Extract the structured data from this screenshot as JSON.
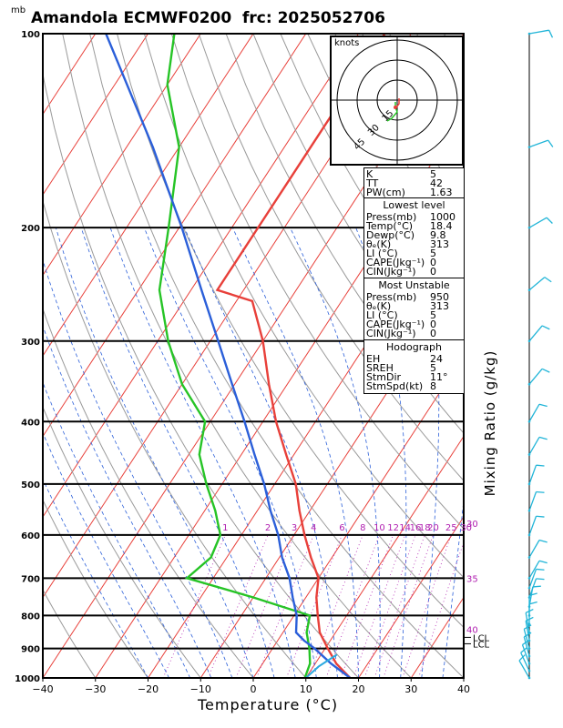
{
  "header": {
    "title": "Amandola ECMWF0200  frc: 2025052706",
    "unit_mb": "mb"
  },
  "chart_data": {
    "type": "line",
    "title": "Amandola ECMWF0200  frc: 2025052706",
    "xlabel": "Temperature (°C)",
    "ylabel": "Mixing Ratio (g/kg)",
    "xlim": [
      -40,
      40
    ],
    "ylim": [
      1000,
      100
    ],
    "y_scale": "log",
    "x_ticks": [
      -40,
      -30,
      -20,
      -10,
      0,
      10,
      20,
      30,
      40
    ],
    "x_tick_labels": [
      "−40",
      "−30",
      "−20",
      "−10",
      "0",
      "10",
      "20",
      "30",
      "40"
    ],
    "pressure_ticks": [
      1000,
      900,
      800,
      700,
      600,
      500,
      400,
      300,
      200,
      100
    ],
    "pressure_tick_labels": [
      "1000",
      "900",
      "800",
      "700",
      "600",
      "500",
      "400",
      "300",
      "200",
      "100"
    ],
    "mixing_ratio_labels": [
      "1",
      "2",
      "3",
      "4",
      "6",
      "8",
      "10",
      "12",
      "14",
      "16",
      "18",
      "20",
      "25",
      "30"
    ],
    "isotherm_skew_labels": [
      {
        "text": "30",
        "p": 575
      },
      {
        "text": "35",
        "p": 700
      },
      {
        "text": "40",
        "p": 840
      }
    ],
    "lcl_labels": [
      "LCL",
      "LCL"
    ],
    "series": [
      {
        "name": "Temperature",
        "color": "#e8403a",
        "points": [
          [
            18.4,
            1000
          ],
          [
            14,
            950
          ],
          [
            10.5,
            900
          ],
          [
            7,
            850
          ],
          [
            4.5,
            800
          ],
          [
            2,
            750
          ],
          [
            0,
            700
          ],
          [
            -4,
            650
          ],
          [
            -8,
            600
          ],
          [
            -12,
            550
          ],
          [
            -16,
            500
          ],
          [
            -21.5,
            450
          ],
          [
            -27.5,
            400
          ],
          [
            -33.5,
            350
          ],
          [
            -40,
            300
          ],
          [
            -47,
            260
          ],
          [
            -55,
            250
          ],
          [
            -55,
            225
          ],
          [
            -55,
            200
          ],
          [
            -55,
            170
          ],
          [
            -55,
            150
          ],
          [
            -55,
            130
          ],
          [
            -55,
            100
          ]
        ]
      },
      {
        "name": "Dewpoint",
        "color": "#26c426",
        "points": [
          [
            9.8,
            1000
          ],
          [
            9,
            950
          ],
          [
            7,
            900
          ],
          [
            4.5,
            850
          ],
          [
            3,
            800
          ],
          [
            -10,
            750
          ],
          [
            -25,
            700
          ],
          [
            -23,
            650
          ],
          [
            -24,
            600
          ],
          [
            -28,
            550
          ],
          [
            -33,
            500
          ],
          [
            -38,
            450
          ],
          [
            -41,
            400
          ],
          [
            -50,
            350
          ],
          [
            -58,
            300
          ],
          [
            -66,
            250
          ],
          [
            -72,
            200
          ],
          [
            -80,
            150
          ],
          [
            -90,
            120
          ],
          [
            -95,
            100
          ]
        ]
      },
      {
        "name": "Parcel",
        "color": "#2b5fd9",
        "points": [
          [
            18.4,
            1000
          ],
          [
            13,
            950
          ],
          [
            8,
            900
          ],
          [
            5,
            875
          ],
          [
            2.5,
            850
          ],
          [
            0.5,
            800
          ],
          [
            -2.5,
            750
          ],
          [
            -5.5,
            700
          ],
          [
            -9.5,
            650
          ],
          [
            -13,
            600
          ],
          [
            -17.5,
            550
          ],
          [
            -22,
            500
          ],
          [
            -27.5,
            450
          ],
          [
            -33.5,
            400
          ],
          [
            -40.5,
            350
          ],
          [
            -48.5,
            300
          ],
          [
            -58,
            250
          ],
          [
            -69.5,
            200
          ],
          [
            -85,
            150
          ],
          [
            -108,
            100
          ]
        ]
      }
    ]
  },
  "hodograph": {
    "label": "knots",
    "rings": [
      "15",
      "30",
      "45"
    ]
  },
  "indices": [
    {
      "label": "K",
      "value": "5"
    },
    {
      "label": "TT",
      "value": "42"
    },
    {
      "label": "PW(cm)",
      "value": "1.63"
    }
  ],
  "lowest_level": {
    "heading": "Lowest level",
    "rows": [
      {
        "label": "Press(mb)",
        "value": "1000"
      },
      {
        "label": "Temp(°C)",
        "value": "18.4"
      },
      {
        "label": "Dewp(°C)",
        "value": "9.8"
      },
      {
        "label": "θₑ(K)",
        "value": "313"
      },
      {
        "label": "LI (°C)",
        "value": "5"
      },
      {
        "label": "CAPE(Jkg⁻¹)",
        "value": "0"
      },
      {
        "label": "CIN(Jkg⁻¹)",
        "value": "0"
      }
    ]
  },
  "most_unstable": {
    "heading": "Most Unstable",
    "rows": [
      {
        "label": "Press(mb)",
        "value": "950"
      },
      {
        "label": "θₑ(K)",
        "value": "313"
      },
      {
        "label": "LI (°C)",
        "value": "5"
      },
      {
        "label": "CAPE(Jkg⁻¹)",
        "value": "0"
      },
      {
        "label": "CIN(Jkg⁻¹)",
        "value": "0"
      }
    ]
  },
  "hodograph_params": {
    "heading": "Hodograph",
    "rows": [
      {
        "label": "EH",
        "value": "24"
      },
      {
        "label": "SREH",
        "value": "5"
      },
      {
        "label": "StmDir",
        "value": "11°"
      },
      {
        "label": "StmSpd(kt)",
        "value": "8"
      }
    ]
  },
  "colors": {
    "isotherm": "#e8403a",
    "dry_adiabat": "#9a9a9a",
    "moist_adiabat": "#2b5fd9",
    "mixing_ratio": "#b020b0",
    "wind_barb": "#22b5d8"
  }
}
